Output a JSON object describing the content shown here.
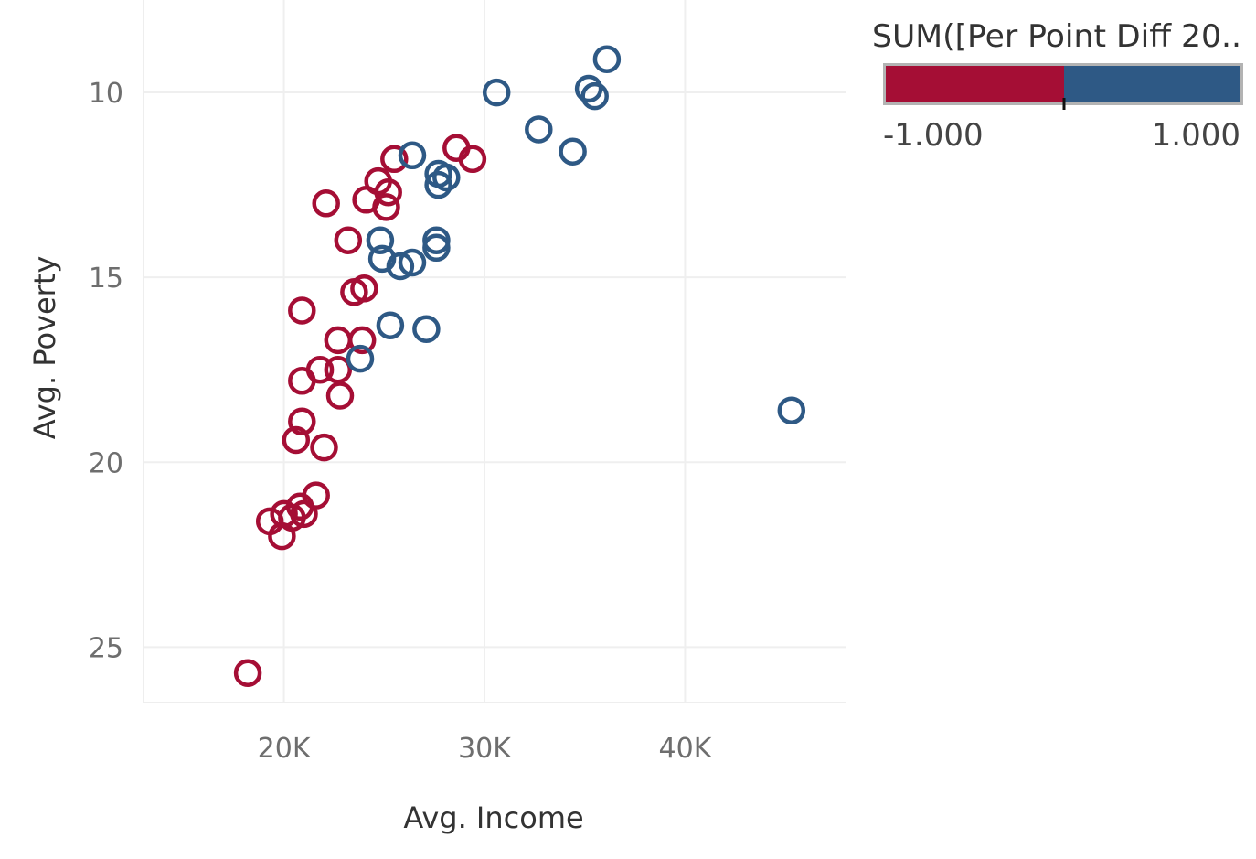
{
  "chart_data": {
    "type": "scatter",
    "xlabel": "Avg. Income",
    "ylabel": "Avg. Poverty",
    "xlim": [
      13000,
      48000
    ],
    "ylim": [
      26.5,
      7.5
    ],
    "y_reversed": true,
    "grid": true,
    "x_ticks": [
      {
        "value": 20000,
        "label": "20K"
      },
      {
        "value": 30000,
        "label": "30K"
      },
      {
        "value": 40000,
        "label": "40K"
      }
    ],
    "y_ticks": [
      {
        "value": 10,
        "label": "10"
      },
      {
        "value": 15,
        "label": "15"
      },
      {
        "value": 20,
        "label": "20"
      },
      {
        "value": 25,
        "label": "25"
      }
    ],
    "marker": "hollow-circle",
    "colors": {
      "negative": "#a50e35",
      "positive": "#2e5985"
    },
    "legend": {
      "title": "SUM([Per Point Diff 20..",
      "placement": "top-right",
      "min_label": "-1.000",
      "max_label": "1.000"
    },
    "points": [
      {
        "x": 18200,
        "y": 25.7,
        "c": -1
      },
      {
        "x": 19300,
        "y": 21.6,
        "c": -1
      },
      {
        "x": 19900,
        "y": 22.0,
        "c": -1
      },
      {
        "x": 20000,
        "y": 21.4,
        "c": -1
      },
      {
        "x": 20400,
        "y": 21.5,
        "c": -1
      },
      {
        "x": 20800,
        "y": 21.2,
        "c": -1
      },
      {
        "x": 21000,
        "y": 21.4,
        "c": -1
      },
      {
        "x": 21600,
        "y": 20.9,
        "c": -1
      },
      {
        "x": 20600,
        "y": 19.4,
        "c": -1
      },
      {
        "x": 20900,
        "y": 18.9,
        "c": -1
      },
      {
        "x": 22000,
        "y": 19.6,
        "c": -1
      },
      {
        "x": 20900,
        "y": 17.8,
        "c": -1
      },
      {
        "x": 21800,
        "y": 17.5,
        "c": -1
      },
      {
        "x": 22700,
        "y": 17.5,
        "c": -1
      },
      {
        "x": 22800,
        "y": 18.2,
        "c": -1
      },
      {
        "x": 22700,
        "y": 16.7,
        "c": -1
      },
      {
        "x": 23900,
        "y": 16.7,
        "c": -1
      },
      {
        "x": 20900,
        "y": 15.9,
        "c": -1
      },
      {
        "x": 23500,
        "y": 15.4,
        "c": -1
      },
      {
        "x": 24000,
        "y": 15.3,
        "c": -1
      },
      {
        "x": 23200,
        "y": 14.0,
        "c": -1
      },
      {
        "x": 22100,
        "y": 13.0,
        "c": -1
      },
      {
        "x": 24100,
        "y": 12.9,
        "c": -1
      },
      {
        "x": 24700,
        "y": 12.4,
        "c": -1
      },
      {
        "x": 25200,
        "y": 12.7,
        "c": -1
      },
      {
        "x": 25100,
        "y": 13.1,
        "c": -1
      },
      {
        "x": 25500,
        "y": 11.8,
        "c": -1
      },
      {
        "x": 28600,
        "y": 11.5,
        "c": -1
      },
      {
        "x": 29400,
        "y": 11.8,
        "c": -1
      },
      {
        "x": 26400,
        "y": 11.7,
        "c": 1
      },
      {
        "x": 27700,
        "y": 12.2,
        "c": 1
      },
      {
        "x": 28100,
        "y": 12.3,
        "c": 1
      },
      {
        "x": 27700,
        "y": 12.5,
        "c": 1
      },
      {
        "x": 24800,
        "y": 14.0,
        "c": 1
      },
      {
        "x": 24900,
        "y": 14.5,
        "c": 1
      },
      {
        "x": 25800,
        "y": 14.7,
        "c": 1
      },
      {
        "x": 26400,
        "y": 14.6,
        "c": 1
      },
      {
        "x": 27600,
        "y": 14.0,
        "c": 1
      },
      {
        "x": 27600,
        "y": 14.2,
        "c": 1
      },
      {
        "x": 25300,
        "y": 16.3,
        "c": 1
      },
      {
        "x": 27100,
        "y": 16.4,
        "c": 1
      },
      {
        "x": 23800,
        "y": 17.2,
        "c": 1
      },
      {
        "x": 30600,
        "y": 10.0,
        "c": 1
      },
      {
        "x": 32700,
        "y": 11.0,
        "c": 1
      },
      {
        "x": 34400,
        "y": 11.6,
        "c": 1
      },
      {
        "x": 35200,
        "y": 9.9,
        "c": 1
      },
      {
        "x": 35500,
        "y": 10.1,
        "c": 1
      },
      {
        "x": 36100,
        "y": 9.1,
        "c": 1
      },
      {
        "x": 45300,
        "y": 18.6,
        "c": 1
      }
    ]
  }
}
